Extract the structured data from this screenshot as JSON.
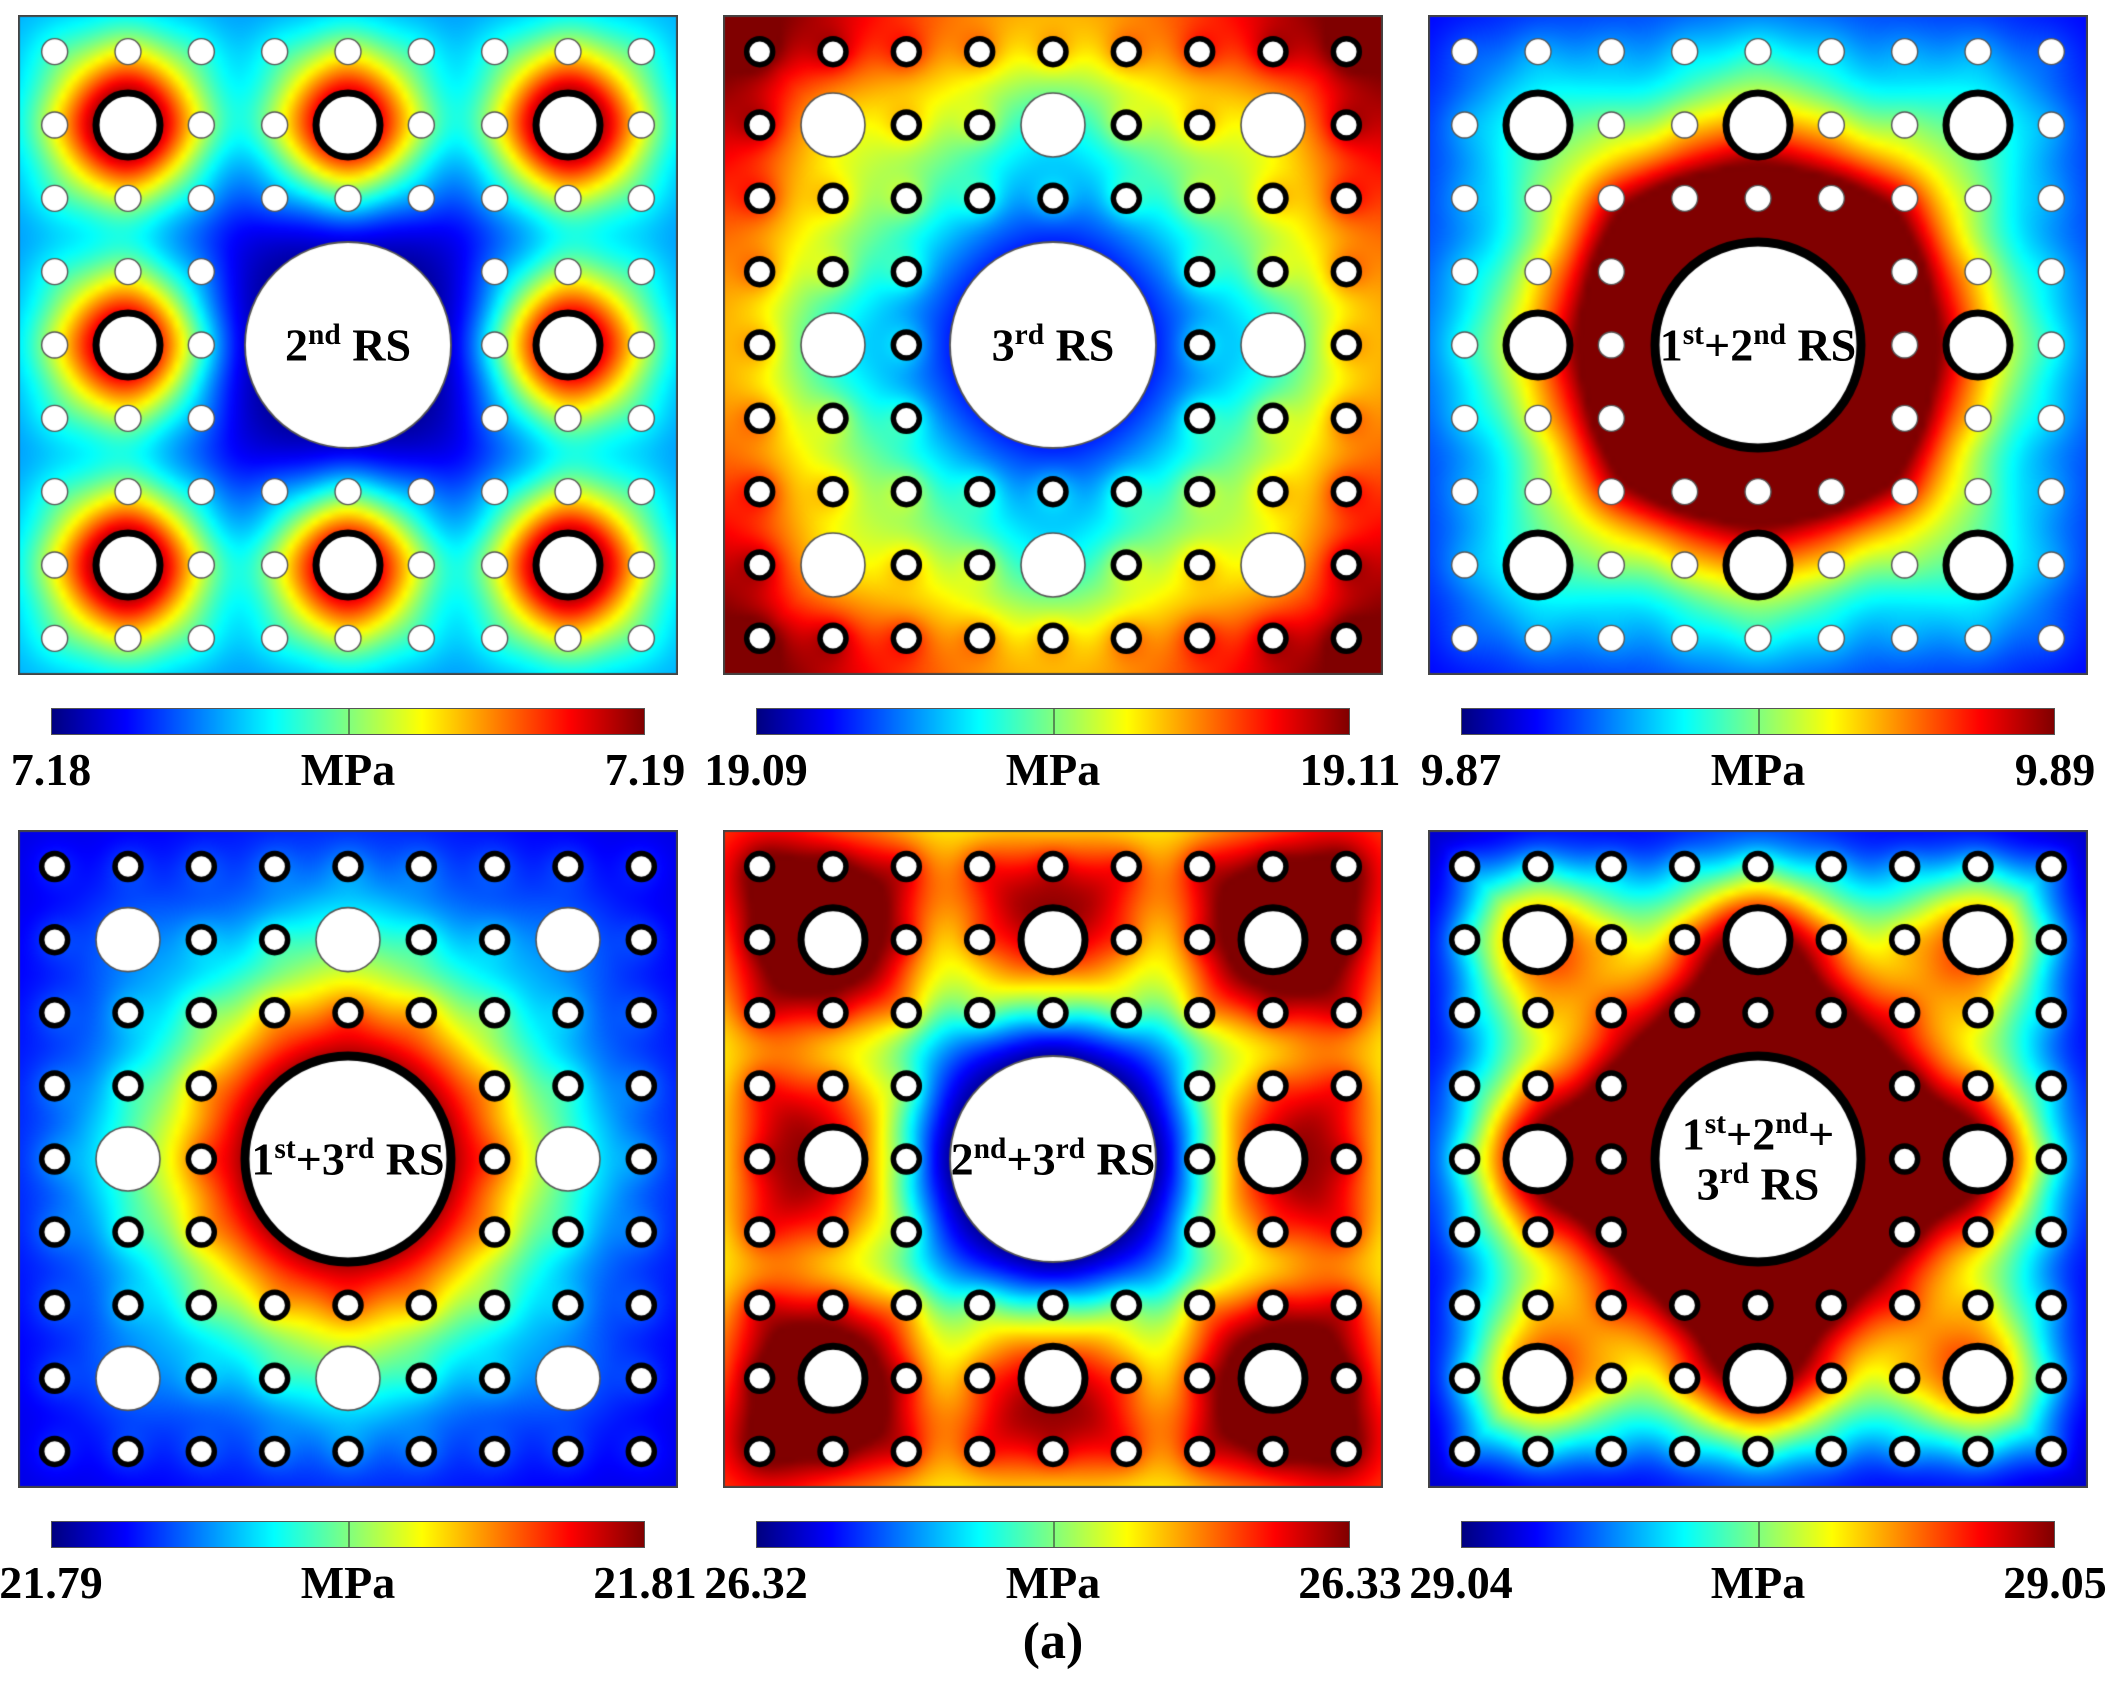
{
  "figure": {
    "caption": "(a)"
  },
  "colormap": {
    "name": "jet",
    "stops": [
      [
        "#000080",
        0
      ],
      [
        "#0000ff",
        12.5
      ],
      [
        "#00ffff",
        37.5
      ],
      [
        "#ffff00",
        62.5
      ],
      [
        "#ff0000",
        87.5
      ],
      [
        "#800000",
        100
      ]
    ]
  },
  "geometry": {
    "panel_size": 660,
    "grid": 9,
    "radius_large": 103,
    "radius_medium": 32,
    "radius_small": 13,
    "ring_width_large": 9,
    "ring_width_medium": 7,
    "ring_width_small": 5.5,
    "plain_stroke_color": "#555555",
    "ring_color": "#000000",
    "border_color": "#444444",
    "field_resolution": 110
  },
  "chart_data": {
    "type": "heatmap",
    "panels": [
      {
        "id": "2nd-rs",
        "label": "2^{nd} RS",
        "colorbar": {
          "min": "7.18",
          "max": "7.19",
          "unit": "MPa"
        },
        "rings": {
          "large": false,
          "medium": true,
          "small": false
        },
        "field": {
          "base": 0.3,
          "center": [
            {
              "amp": -0.27,
              "sigma": 140
            },
            {
              "amp": -0.08,
              "sigma": 230
            }
          ],
          "medium": {
            "amp": 0.85,
            "sigma": 52
          },
          "small": {
            "amp": 0.04,
            "sigma": 22
          }
        }
      },
      {
        "id": "3rd-rs",
        "label": "3^{rd} RS",
        "colorbar": {
          "min": "19.09",
          "max": "19.11",
          "unit": "MPa"
        },
        "rings": {
          "large": false,
          "medium": false,
          "small": true
        },
        "field": {
          "base": 0.58,
          "center": [
            {
              "amp": -0.6,
              "sigma": 125
            }
          ],
          "medium": {
            "amp": -0.1,
            "sigma": 55
          },
          "small": {
            "amp": 0.09,
            "sigma": 15
          },
          "corner": {
            "amp": 0.36,
            "sigma": 140
          },
          "edge": {
            "amp": 0.1,
            "sigma": 55
          }
        }
      },
      {
        "id": "1st-2nd-rs",
        "label": "1^{st}+2^{nd} RS",
        "colorbar": {
          "min": "9.87",
          "max": "9.89",
          "unit": "MPa"
        },
        "rings": {
          "large": true,
          "medium": true,
          "small": false
        },
        "field": {
          "base": 0.17,
          "center": [
            {
              "amp": 1.05,
              "sigma": 140
            }
          ],
          "medium": {
            "amp": 0.2,
            "sigma": 60
          },
          "small": {
            "amp": 0.03,
            "sigma": 18
          },
          "ridge_diag": {
            "amp": 0.4,
            "sigma": 60
          },
          "ridge_orth": {
            "amp": 0.3,
            "sigma": 60
          },
          "corner": {
            "amp": -0.05,
            "sigma": 180
          }
        }
      },
      {
        "id": "1st-3rd-rs",
        "label": "1^{st}+3^{rd} RS",
        "colorbar": {
          "min": "21.79",
          "max": "21.81",
          "unit": "MPa"
        },
        "rings": {
          "large": true,
          "medium": false,
          "small": true
        },
        "field": {
          "base": 0.15,
          "center": [
            {
              "amp": 1.15,
              "sigma": 128
            }
          ],
          "medium": {
            "amp": 0.07,
            "sigma": 45
          },
          "small": {
            "amp": 0.05,
            "sigma": 16
          },
          "corner": {
            "amp": -0.05,
            "sigma": 200
          }
        }
      },
      {
        "id": "2nd-3rd-rs",
        "label": "2^{nd}+3^{rd} RS",
        "colorbar": {
          "min": "26.32",
          "max": "26.33",
          "unit": "MPa"
        },
        "rings": {
          "large": false,
          "medium": true,
          "small": true
        },
        "field": {
          "base": 0.52,
          "center": [
            {
              "amp": -0.55,
              "sigma": 120
            }
          ],
          "medium": {
            "amp": 0.5,
            "sigma": 55
          },
          "med_lobe": {
            "amp": 0.18,
            "sigma": 38,
            "offset": 55
          },
          "axis": {
            "amp": -0.2,
            "sigma": 65,
            "dist": 135
          },
          "small": {
            "amp": 0.06,
            "sigma": 14
          },
          "corner": {
            "amp": 0.22,
            "sigma": 100
          },
          "edge": {
            "amp": 0.06,
            "sigma": 60
          }
        }
      },
      {
        "id": "1st-2nd-3rd-rs",
        "label": "1^{st}+2^{nd}+\n3^{rd} RS",
        "colorbar": {
          "min": "29.04",
          "max": "29.05",
          "unit": "MPa"
        },
        "rings": {
          "large": true,
          "medium": true,
          "small": true
        },
        "field": {
          "base": 0.4,
          "center": [
            {
              "amp": 1.15,
              "sigma": 118
            }
          ],
          "medium": {
            "amp": 0.45,
            "sigma": 52
          },
          "ridge_diag": {
            "amp": 0.15,
            "sigma": 48
          },
          "axis": {
            "amp": 0.22,
            "sigma": 55,
            "dist": 135
          },
          "small": {
            "amp": 0.05,
            "sigma": 14
          },
          "edge": {
            "amp": -0.25,
            "sigma": 50
          },
          "corner": {
            "amp": -0.08,
            "sigma": 160
          }
        }
      }
    ]
  }
}
